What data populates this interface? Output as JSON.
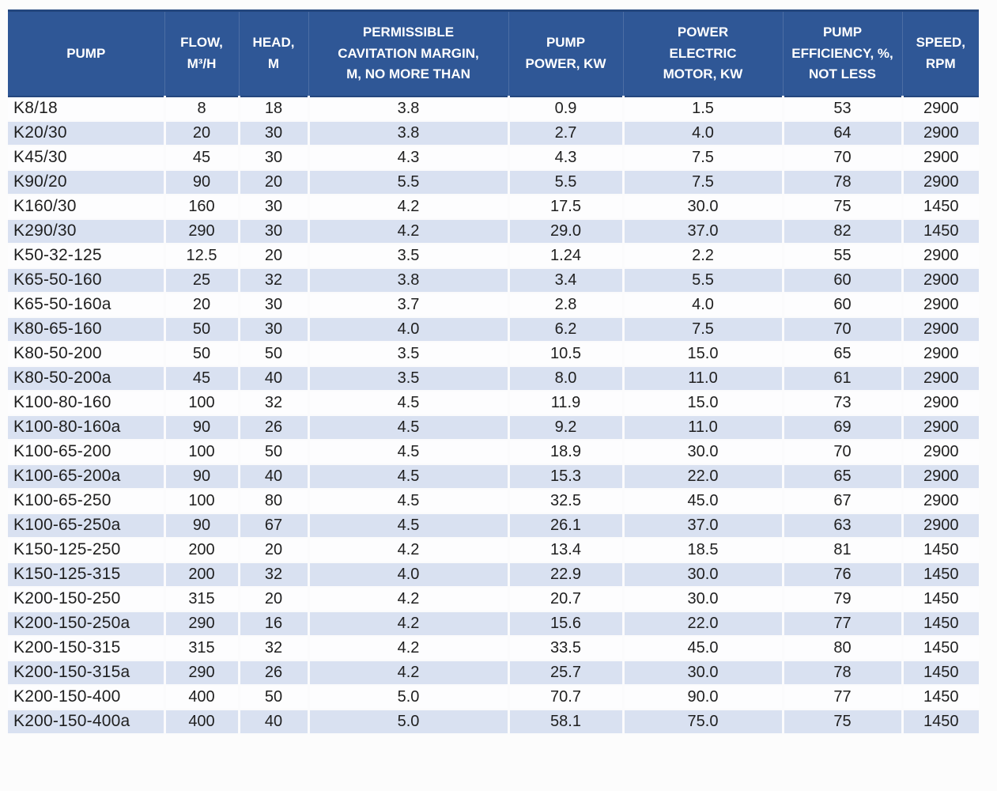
{
  "colors": {
    "header_bg": "#2f5796",
    "header_border": "#24477e",
    "band_bg": "#d9e1f1",
    "row_bg": "#fdfdfe",
    "body_text": "#1f1f1f"
  },
  "chart_data": {
    "type": "table",
    "columns": [
      "PUMP",
      "FLOW,\nM³/H",
      "HEAD,\nM",
      "PERMISSIBLE\nCAVITATION MARGIN,\nM, NO MORE THAN",
      "PUMP\nPOWER, KW",
      "POWER\nELECTRIC\nMOTOR, KW",
      "PUMP\nEFFICIENCY, %,\nNOT LESS",
      "SPEED,\nRPM"
    ],
    "rows": [
      [
        "K8/18",
        "8",
        "18",
        "3.8",
        "0.9",
        "1.5",
        "53",
        "2900"
      ],
      [
        "K20/30",
        "20",
        "30",
        "3.8",
        "2.7",
        "4.0",
        "64",
        "2900"
      ],
      [
        "K45/30",
        "45",
        "30",
        "4.3",
        "4.3",
        "7.5",
        "70",
        "2900"
      ],
      [
        "K90/20",
        "90",
        "20",
        "5.5",
        "5.5",
        "7.5",
        "78",
        "2900"
      ],
      [
        "K160/30",
        "160",
        "30",
        "4.2",
        "17.5",
        "30.0",
        "75",
        "1450"
      ],
      [
        "K290/30",
        "290",
        "30",
        "4.2",
        "29.0",
        "37.0",
        "82",
        "1450"
      ],
      [
        "K50-32-125",
        "12.5",
        "20",
        "3.5",
        "1.24",
        "2.2",
        "55",
        "2900"
      ],
      [
        "K65-50-160",
        "25",
        "32",
        "3.8",
        "3.4",
        "5.5",
        "60",
        "2900"
      ],
      [
        "K65-50-160a",
        "20",
        "30",
        "3.7",
        "2.8",
        "4.0",
        "60",
        "2900"
      ],
      [
        "K80-65-160",
        "50",
        "30",
        "4.0",
        "6.2",
        "7.5",
        "70",
        "2900"
      ],
      [
        "K80-50-200",
        "50",
        "50",
        "3.5",
        "10.5",
        "15.0",
        "65",
        "2900"
      ],
      [
        "K80-50-200a",
        "45",
        "40",
        "3.5",
        "8.0",
        "11.0",
        "61",
        "2900"
      ],
      [
        "K100-80-160",
        "100",
        "32",
        "4.5",
        "11.9",
        "15.0",
        "73",
        "2900"
      ],
      [
        "K100-80-160a",
        "90",
        "26",
        "4.5",
        "9.2",
        "11.0",
        "69",
        "2900"
      ],
      [
        "K100-65-200",
        "100",
        "50",
        "4.5",
        "18.9",
        "30.0",
        "70",
        "2900"
      ],
      [
        "K100-65-200a",
        "90",
        "40",
        "4.5",
        "15.3",
        "22.0",
        "65",
        "2900"
      ],
      [
        "K100-65-250",
        "100",
        "80",
        "4.5",
        "32.5",
        "45.0",
        "67",
        "2900"
      ],
      [
        "K100-65-250a",
        "90",
        "67",
        "4.5",
        "26.1",
        "37.0",
        "63",
        "2900"
      ],
      [
        "K150-125-250",
        "200",
        "20",
        "4.2",
        "13.4",
        "18.5",
        "81",
        "1450"
      ],
      [
        "K150-125-315",
        "200",
        "32",
        "4.0",
        "22.9",
        "30.0",
        "76",
        "1450"
      ],
      [
        "K200-150-250",
        "315",
        "20",
        "4.2",
        "20.7",
        "30.0",
        "79",
        "1450"
      ],
      [
        "K200-150-250a",
        "290",
        "16",
        "4.2",
        "15.6",
        "22.0",
        "77",
        "1450"
      ],
      [
        "K200-150-315",
        "315",
        "32",
        "4.2",
        "33.5",
        "45.0",
        "80",
        "1450"
      ],
      [
        "K200-150-315a",
        "290",
        "26",
        "4.2",
        "25.7",
        "30.0",
        "78",
        "1450"
      ],
      [
        "K200-150-400",
        "400",
        "50",
        "5.0",
        "70.7",
        "90.0",
        "77",
        "1450"
      ],
      [
        "K200-150-400a",
        "400",
        "40",
        "5.0",
        "58.1",
        "75.0",
        "75",
        "1450"
      ]
    ]
  }
}
